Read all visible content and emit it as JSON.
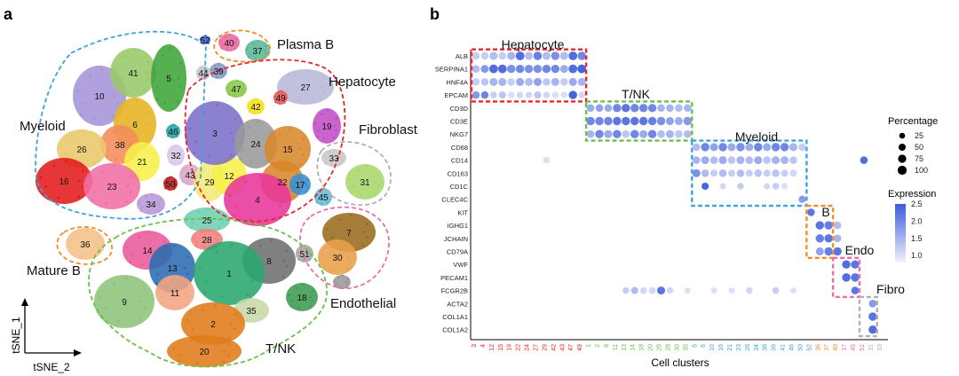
{
  "panel_a": {
    "label": "a",
    "x_axis_label": "tSNE_2",
    "y_axis_label": "tSNE_1",
    "groups": [
      {
        "name": "Myeloid",
        "color": "#3fa3e0"
      },
      {
        "name": "Plasma B",
        "color": "#f28c28"
      },
      {
        "name": "Hepatocyte",
        "color": "#e8262b"
      },
      {
        "name": "Fibroblast",
        "color": "#b0b0b0"
      },
      {
        "name": "Mature B",
        "color": "#f28c28"
      },
      {
        "name": "Endothelial",
        "color": "#e870a8"
      },
      {
        "name": "T/NK",
        "color": "#6cbf4a"
      }
    ],
    "clusters": [
      {
        "id": "1",
        "color": "#2aa66e"
      },
      {
        "id": "2",
        "color": "#e07b1a"
      },
      {
        "id": "3",
        "color": "#7b6fc9"
      },
      {
        "id": "4",
        "color": "#e8359a"
      },
      {
        "id": "5",
        "color": "#3fa53a"
      },
      {
        "id": "6",
        "color": "#e6b420"
      },
      {
        "id": "7",
        "color": "#9a6b1e"
      },
      {
        "id": "8",
        "color": "#6e6e6e"
      },
      {
        "id": "9",
        "color": "#8cc47a"
      },
      {
        "id": "10",
        "color": "#a593d8"
      },
      {
        "id": "11",
        "color": "#f4a582"
      },
      {
        "id": "12",
        "color": "#f7f04a"
      },
      {
        "id": "13",
        "color": "#2b6cb0"
      },
      {
        "id": "14",
        "color": "#e85a9a"
      },
      {
        "id": "15",
        "color": "#d8882a"
      },
      {
        "id": "16",
        "color": "#e31a1c"
      },
      {
        "id": "17",
        "color": "#3a8fd0"
      },
      {
        "id": "18",
        "color": "#3d9b52"
      },
      {
        "id": "19",
        "color": "#c04fc4"
      },
      {
        "id": "20",
        "color": "#e07b1a"
      },
      {
        "id": "21",
        "color": "#f7f04a"
      },
      {
        "id": "22",
        "color": "#d8882a"
      },
      {
        "id": "23",
        "color": "#f06fa5"
      },
      {
        "id": "24",
        "color": "#9a9a9a"
      },
      {
        "id": "25",
        "color": "#6fcfb0"
      },
      {
        "id": "26",
        "color": "#e8c86a"
      },
      {
        "id": "27",
        "color": "#b8b8d8"
      },
      {
        "id": "28",
        "color": "#f08080"
      },
      {
        "id": "29",
        "color": "#f4e97a"
      },
      {
        "id": "30",
        "color": "#e8a04a"
      },
      {
        "id": "31",
        "color": "#a8d86a"
      },
      {
        "id": "32",
        "color": "#d8c8e8"
      },
      {
        "id": "33",
        "color": "#c8c8c8"
      },
      {
        "id": "34",
        "color": "#b898d8"
      },
      {
        "id": "35",
        "color": "#c8d8a8"
      },
      {
        "id": "36",
        "color": "#f4c088"
      },
      {
        "id": "37",
        "color": "#5ab89a"
      },
      {
        "id": "38",
        "color": "#f28c5a"
      },
      {
        "id": "39",
        "color": "#8898c8"
      },
      {
        "id": "40",
        "color": "#e86aa0"
      },
      {
        "id": "41",
        "color": "#9ac86a"
      },
      {
        "id": "42",
        "color": "#f7e020"
      },
      {
        "id": "43",
        "color": "#d8a8c8"
      },
      {
        "id": "44",
        "color": "#c8c8c8"
      },
      {
        "id": "45",
        "color": "#6ab8d8"
      },
      {
        "id": "46",
        "color": "#2aa6a6"
      },
      {
        "id": "47",
        "color": "#8ac84a"
      },
      {
        "id": "49",
        "color": "#e85a5a"
      },
      {
        "id": "50",
        "color": "#c02020"
      },
      {
        "id": "51",
        "color": "#a8a8a8"
      },
      {
        "id": "52",
        "color": "#4a6ad8"
      }
    ]
  },
  "panel_b": {
    "label": "b",
    "boxes": [
      {
        "name": "Hepatocyte",
        "color": "#e8262b"
      },
      {
        "name": "T/NK",
        "color": "#6cbf4a"
      },
      {
        "name": "Myeloid",
        "color": "#3fa3e0"
      },
      {
        "name": "B",
        "color": "#f28c28"
      },
      {
        "name": "Endo",
        "color": "#e870a8"
      },
      {
        "name": "Fibro",
        "color": "#b0b0b0"
      }
    ],
    "percentage_legend": {
      "title": "Percentage",
      "levels": [
        "25",
        "50",
        "75",
        "100"
      ]
    },
    "expression_legend": {
      "title": "Expression",
      "ticks": [
        "2.5",
        "2.0",
        "1.5",
        "1.0"
      ],
      "low_color": "#f2f2fb",
      "high_color": "#3b5bdb"
    }
  },
  "chart_data": {
    "type": "dotplot",
    "xlabel": "Cell clusters",
    "ylabel": "",
    "genes": [
      "ALB",
      "SERPINA1",
      "HNF4A",
      "EPCAM",
      "CD3D",
      "CD3E",
      "NKG7",
      "CD68",
      "CD14",
      "CD163",
      "CD1C",
      "CLEC4C",
      "KIT",
      "IGHG1",
      "JCHAIN",
      "CD79A",
      "VWF",
      "PECAM1",
      "FCGR2B",
      "ACTA2",
      "COL1A1",
      "COL1A2"
    ],
    "clusters": [
      "3",
      "4",
      "12",
      "15",
      "19",
      "22",
      "24",
      "27",
      "29",
      "42",
      "43",
      "47",
      "49",
      "1",
      "2",
      "8",
      "11",
      "13",
      "14",
      "18",
      "20",
      "25",
      "28",
      "30",
      "35",
      "5",
      "6",
      "10",
      "16",
      "21",
      "23",
      "26",
      "34",
      "38",
      "39",
      "41",
      "46",
      "50",
      "52",
      "36",
      "37",
      "40",
      "17",
      "45",
      "51",
      "31",
      "33"
    ],
    "cluster_group_colors": [
      "#e8262b",
      "#e8262b",
      "#e8262b",
      "#e8262b",
      "#e8262b",
      "#e8262b",
      "#e8262b",
      "#e8262b",
      "#e8262b",
      "#e8262b",
      "#e8262b",
      "#e8262b",
      "#e8262b",
      "#6cbf4a",
      "#6cbf4a",
      "#6cbf4a",
      "#6cbf4a",
      "#6cbf4a",
      "#6cbf4a",
      "#6cbf4a",
      "#6cbf4a",
      "#6cbf4a",
      "#6cbf4a",
      "#6cbf4a",
      "#6cbf4a",
      "#3fa3e0",
      "#3fa3e0",
      "#3fa3e0",
      "#3fa3e0",
      "#3fa3e0",
      "#3fa3e0",
      "#3fa3e0",
      "#3fa3e0",
      "#3fa3e0",
      "#3fa3e0",
      "#3fa3e0",
      "#3fa3e0",
      "#3fa3e0",
      "#3fa3e0",
      "#f28c28",
      "#f28c28",
      "#f28c28",
      "#e870a8",
      "#e870a8",
      "#e870a8",
      "#b0b0b0",
      "#b0b0b0"
    ],
    "dots": [
      [
        0,
        0,
        60,
        1.2
      ],
      [
        0,
        1,
        60,
        1.2
      ],
      [
        0,
        2,
        70,
        1.4
      ],
      [
        0,
        3,
        60,
        1.2
      ],
      [
        0,
        4,
        70,
        1.5
      ],
      [
        0,
        5,
        90,
        2.3
      ],
      [
        0,
        6,
        70,
        1.4
      ],
      [
        0,
        7,
        80,
        2.1
      ],
      [
        0,
        8,
        70,
        1.4
      ],
      [
        0,
        9,
        80,
        1.9
      ],
      [
        0,
        10,
        70,
        1.4
      ],
      [
        0,
        11,
        90,
        2.3
      ],
      [
        0,
        12,
        80,
        2.0
      ],
      [
        1,
        0,
        60,
        1.4
      ],
      [
        1,
        1,
        70,
        1.8
      ],
      [
        1,
        2,
        90,
        2.3
      ],
      [
        1,
        3,
        90,
        2.3
      ],
      [
        1,
        4,
        80,
        1.9
      ],
      [
        1,
        5,
        80,
        2.0
      ],
      [
        1,
        6,
        80,
        1.9
      ],
      [
        1,
        7,
        80,
        1.9
      ],
      [
        1,
        8,
        80,
        2.0
      ],
      [
        1,
        9,
        80,
        2.0
      ],
      [
        1,
        10,
        70,
        1.6
      ],
      [
        1,
        11,
        90,
        2.3
      ],
      [
        1,
        12,
        90,
        2.4
      ],
      [
        2,
        0,
        60,
        1.2
      ],
      [
        2,
        1,
        60,
        1.3
      ],
      [
        2,
        2,
        70,
        1.5
      ],
      [
        2,
        3,
        70,
        1.5
      ],
      [
        2,
        4,
        60,
        1.2
      ],
      [
        2,
        5,
        70,
        1.6
      ],
      [
        2,
        6,
        70,
        1.4
      ],
      [
        2,
        7,
        70,
        1.7
      ],
      [
        2,
        8,
        60,
        1.3
      ],
      [
        2,
        9,
        70,
        1.5
      ],
      [
        2,
        10,
        60,
        1.2
      ],
      [
        2,
        11,
        70,
        1.6
      ],
      [
        2,
        12,
        70,
        1.5
      ],
      [
        3,
        0,
        60,
        1.8
      ],
      [
        3,
        1,
        60,
        2.0
      ],
      [
        3,
        2,
        40,
        1.2
      ],
      [
        3,
        3,
        50,
        1.3
      ],
      [
        3,
        4,
        40,
        1.0
      ],
      [
        3,
        5,
        40,
        1.1
      ],
      [
        3,
        6,
        40,
        1.1
      ],
      [
        3,
        7,
        50,
        1.3
      ],
      [
        3,
        8,
        40,
        1.1
      ],
      [
        3,
        9,
        40,
        1.0
      ],
      [
        3,
        10,
        40,
        1.0
      ],
      [
        3,
        11,
        80,
        2.4
      ],
      [
        3,
        12,
        40,
        1.1
      ],
      [
        4,
        13,
        60,
        1.6
      ],
      [
        4,
        14,
        60,
        1.7
      ],
      [
        4,
        15,
        60,
        1.6
      ],
      [
        4,
        16,
        80,
        2.0
      ],
      [
        4,
        17,
        80,
        2.2
      ],
      [
        4,
        18,
        80,
        2.0
      ],
      [
        4,
        19,
        80,
        2.0
      ],
      [
        4,
        20,
        80,
        2.0
      ],
      [
        4,
        21,
        60,
        1.5
      ],
      [
        4,
        22,
        60,
        1.5
      ],
      [
        4,
        23,
        60,
        1.4
      ],
      [
        4,
        24,
        60,
        1.5
      ],
      [
        5,
        13,
        80,
        2.0
      ],
      [
        5,
        14,
        80,
        2.0
      ],
      [
        5,
        15,
        80,
        2.0
      ],
      [
        5,
        16,
        80,
        2.2
      ],
      [
        5,
        17,
        80,
        2.2
      ],
      [
        5,
        18,
        80,
        2.2
      ],
      [
        5,
        19,
        80,
        2.2
      ],
      [
        5,
        20,
        80,
        2.1
      ],
      [
        5,
        21,
        80,
        1.9
      ],
      [
        5,
        22,
        70,
        1.7
      ],
      [
        5,
        23,
        70,
        1.6
      ],
      [
        5,
        24,
        80,
        1.8
      ],
      [
        6,
        13,
        60,
        1.5
      ],
      [
        6,
        14,
        80,
        2.0
      ],
      [
        6,
        15,
        70,
        1.6
      ],
      [
        6,
        16,
        80,
        2.0
      ],
      [
        6,
        17,
        60,
        1.3
      ],
      [
        6,
        18,
        80,
        2.0
      ],
      [
        6,
        19,
        70,
        1.6
      ],
      [
        6,
        20,
        80,
        2.0
      ],
      [
        6,
        21,
        60,
        1.4
      ],
      [
        6,
        22,
        70,
        1.5
      ],
      [
        6,
        23,
        60,
        1.3
      ],
      [
        6,
        24,
        60,
        1.4
      ],
      [
        7,
        25,
        60,
        1.4
      ],
      [
        7,
        26,
        80,
        2.0
      ],
      [
        7,
        27,
        70,
        1.7
      ],
      [
        7,
        28,
        80,
        2.0
      ],
      [
        7,
        29,
        70,
        1.6
      ],
      [
        7,
        30,
        80,
        1.9
      ],
      [
        7,
        31,
        70,
        1.6
      ],
      [
        7,
        32,
        80,
        2.0
      ],
      [
        7,
        33,
        70,
        1.6
      ],
      [
        7,
        34,
        80,
        2.0
      ],
      [
        7,
        35,
        80,
        2.0
      ],
      [
        7,
        36,
        70,
        1.5
      ],
      [
        7,
        37,
        60,
        1.2
      ],
      [
        8,
        8,
        40,
        1.0
      ],
      [
        8,
        25,
        60,
        1.5
      ],
      [
        8,
        26,
        70,
        1.6
      ],
      [
        8,
        27,
        60,
        1.4
      ],
      [
        8,
        28,
        70,
        1.6
      ],
      [
        8,
        29,
        60,
        1.3
      ],
      [
        8,
        30,
        70,
        1.5
      ],
      [
        8,
        31,
        60,
        1.4
      ],
      [
        8,
        32,
        70,
        1.6
      ],
      [
        8,
        33,
        60,
        1.3
      ],
      [
        8,
        34,
        70,
        1.5
      ],
      [
        8,
        35,
        70,
        1.5
      ],
      [
        8,
        36,
        60,
        1.3
      ],
      [
        8,
        44,
        60,
        2.3
      ],
      [
        9,
        25,
        70,
        1.9
      ],
      [
        9,
        26,
        60,
        1.4
      ],
      [
        9,
        27,
        50,
        1.2
      ],
      [
        9,
        28,
        60,
        1.4
      ],
      [
        9,
        29,
        50,
        1.2
      ],
      [
        9,
        30,
        60,
        1.4
      ],
      [
        9,
        31,
        50,
        1.2
      ],
      [
        9,
        32,
        60,
        1.3
      ],
      [
        9,
        33,
        50,
        1.2
      ],
      [
        9,
        34,
        60,
        1.3
      ],
      [
        9,
        35,
        50,
        1.2
      ],
      [
        9,
        36,
        50,
        1.1
      ],
      [
        10,
        26,
        50,
        2.4
      ],
      [
        10,
        28,
        30,
        1.1
      ],
      [
        10,
        30,
        40,
        1.2
      ],
      [
        10,
        33,
        30,
        1.1
      ],
      [
        10,
        34,
        40,
        1.2
      ],
      [
        10,
        35,
        30,
        1.0
      ],
      [
        11,
        37,
        50,
        1.8
      ],
      [
        12,
        38,
        60,
        2.2
      ],
      [
        13,
        39,
        80,
        2.2
      ],
      [
        13,
        40,
        80,
        2.1
      ],
      [
        13,
        41,
        60,
        1.4
      ],
      [
        14,
        39,
        80,
        2.1
      ],
      [
        14,
        40,
        80,
        2.2
      ],
      [
        14,
        41,
        60,
        1.5
      ],
      [
        15,
        39,
        70,
        1.7
      ],
      [
        15,
        40,
        80,
        2.1
      ],
      [
        15,
        41,
        80,
        2.2
      ],
      [
        16,
        42,
        80,
        2.3
      ],
      [
        16,
        43,
        80,
        2.2
      ],
      [
        17,
        42,
        80,
        2.3
      ],
      [
        17,
        43,
        80,
        2.2
      ],
      [
        18,
        17,
        40,
        1.2
      ],
      [
        18,
        18,
        50,
        1.4
      ],
      [
        18,
        19,
        40,
        1.1
      ],
      [
        18,
        20,
        40,
        1.1
      ],
      [
        18,
        21,
        70,
        2.2
      ],
      [
        18,
        22,
        40,
        1.1
      ],
      [
        18,
        24,
        30,
        1.0
      ],
      [
        18,
        27,
        30,
        1.0
      ],
      [
        18,
        29,
        30,
        1.0
      ],
      [
        18,
        31,
        40,
        1.1
      ],
      [
        18,
        34,
        40,
        1.2
      ],
      [
        18,
        36,
        30,
        1.0
      ],
      [
        18,
        43,
        60,
        2.2
      ],
      [
        19,
        45,
        60,
        1.8
      ],
      [
        20,
        45,
        80,
        2.2
      ],
      [
        21,
        45,
        80,
        2.3
      ]
    ]
  }
}
